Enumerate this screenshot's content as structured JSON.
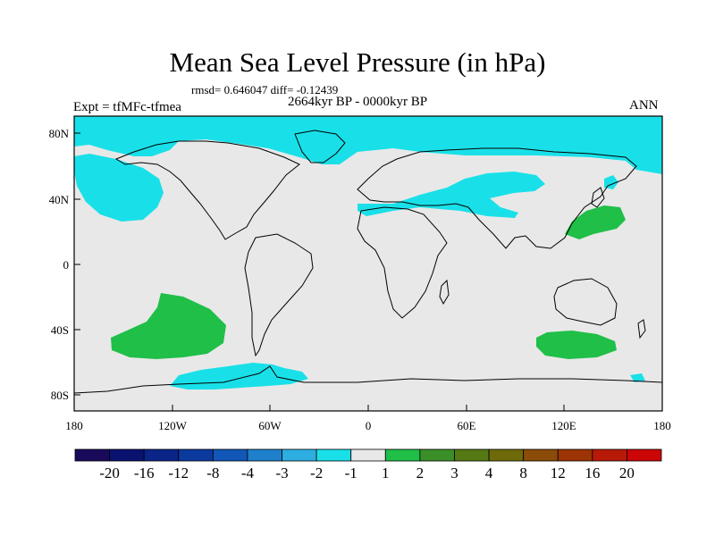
{
  "title": "Mean Sea Level Pressure (in hPa)",
  "stats": "rmsd= 0.646047 diff= -0.12439",
  "period": "2664kyr BP - 0000kyr BP",
  "experiment": "Expt = tfMFc-tfmea",
  "season": "ANN",
  "axes": {
    "lat_labels": [
      "80N",
      "40N",
      "0",
      "40S",
      "80S"
    ],
    "lon_labels": [
      "180",
      "120W",
      "60W",
      "0",
      "60E",
      "120E",
      "180"
    ]
  },
  "colorbar": {
    "labels": [
      "-20",
      "-16",
      "-12",
      "-8",
      "-4",
      "-3",
      "-2",
      "-1",
      "1",
      "2",
      "3",
      "4",
      "8",
      "12",
      "16",
      "20"
    ],
    "colors": [
      "#1a0a5c",
      "#0a1270",
      "#0a2488",
      "#0a3a9e",
      "#1256b8",
      "#1e80cc",
      "#2eaee0",
      "#19e0e8",
      "#e8e8e8",
      "#1fbf48",
      "#3a8f28",
      "#557a14",
      "#6e6a0a",
      "#8a4c08",
      "#9c3406",
      "#b81a08",
      "#cc0606"
    ]
  },
  "colors": {
    "land_ocean_neutral": "#e8e8e8",
    "negative_anomaly": "#19e0e8",
    "positive_anomaly": "#1fbf48"
  }
}
